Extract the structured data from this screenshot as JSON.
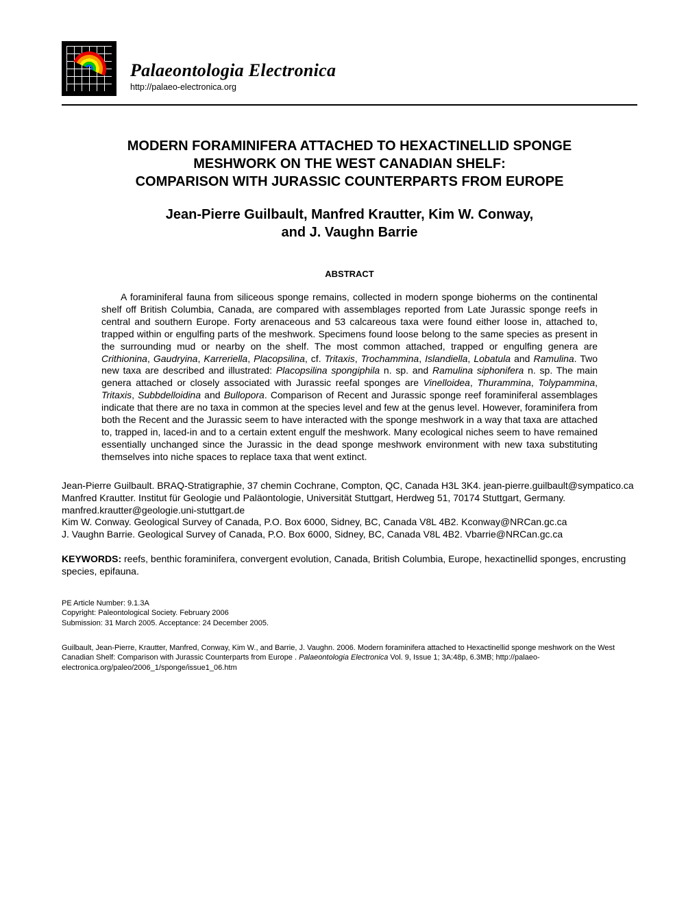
{
  "journal": {
    "title": "Palaeontologia Electronica",
    "url": "http://palaeo-electronica.org",
    "logo_colors": {
      "bg": "#000000",
      "grid": "#ffffff",
      "arcs": [
        "#e60000",
        "#ff9900",
        "#ffee00",
        "#00cc00",
        "#0066ff"
      ]
    }
  },
  "article": {
    "title_line1": "MODERN FORAMINIFERA ATTACHED TO HEXACTINELLID SPONGE",
    "title_line2": "MESHWORK ON THE WEST CANADIAN SHELF:",
    "title_line3": "COMPARISON WITH JURASSIC COUNTERPARTS FROM EUROPE",
    "authors_line1": "Jean-Pierre Guilbault, Manfred Krautter, Kim W. Conway,",
    "authors_line2": "and J. Vaughn Barrie"
  },
  "abstract": {
    "heading": "ABSTRACT",
    "p1_a": "A foraminiferal fauna from siliceous sponge remains, collected in modern sponge bioherms on the continental shelf off British Columbia, Canada, are compared with assemblages reported from Late Jurassic sponge reefs in central and southern Europe. Forty arenaceous and 53 calcareous taxa were found either loose in, attached to, trapped within or engulfing parts of the meshwork. Specimens found loose belong to the same species as present in the surrounding mud or nearby on the shelf. The most common attached, trapped or engulfing genera are ",
    "genera1": "Crithionina",
    "c1": ", ",
    "genera2": "Gaudryina",
    "c2": ", ",
    "genera3": "Karreriella",
    "c3": ", ",
    "genera4": "Placopsilina",
    "c4": ", cf. ",
    "genera5": "Tritaxis",
    "c5": ", ",
    "genera6": "Trochammina",
    "c6": ", ",
    "genera7": "Islandiella",
    "c7": ", ",
    "genera8": "Lobatula",
    "c8": " and ",
    "genera9": "Ramulina",
    "p1_b": ". Two new taxa are described and illustrated: ",
    "newtaxa1": "Placopsilina spongiphila",
    "p1_c": " n. sp. and ",
    "newtaxa2": "Ramulina siphonifera",
    "p1_d": " n. sp. The main genera attached or closely associated with Jurassic reefal sponges are ",
    "jgen1": "Vinelloidea",
    "jc1": ", ",
    "jgen2": "Thurammina",
    "jc2": ", ",
    "jgen3": "Tolypammina",
    "jc3": ", ",
    "jgen4": "Tritaxis",
    "jc4": ", ",
    "jgen5": "Subbdelloidina",
    "jc5": " and ",
    "jgen6": "Bullopora",
    "p1_e": ". Comparison of Recent and Jurassic sponge reef foraminiferal assemblages indicate that there are no taxa in common at the species level and few at the genus level. However, foraminifera from both the Recent and the Jurassic seem to have interacted with the sponge meshwork in a way that taxa are attached to, trapped in, laced-in and to a certain extent engulf the meshwork. Many ecological niches seem to have remained essentially unchanged since the Jurassic in the dead sponge meshwork environment with new taxa substituting themselves into niche spaces to replace taxa that went extinct."
  },
  "affiliations": {
    "a1": "Jean-Pierre Guilbault. BRAQ-Stratigraphie, 37 chemin Cochrane, Compton, QC, Canada H3L 3K4. jean-pierre.guilbault@sympatico.ca",
    "a2": "Manfred Krautter. Institut für Geologie und Paläontologie, Universität Stuttgart, Herdweg 51, 70174 Stuttgart, Germany. manfred.krautter@geologie.uni-stuttgart.de",
    "a3": "Kim W. Conway. Geological Survey of Canada, P.O. Box 6000, Sidney, BC, Canada V8L 4B2. Kconway@NRCan.gc.ca",
    "a4": "J. Vaughn Barrie. Geological Survey of Canada, P.O. Box 6000, Sidney, BC, Canada V8L 4B2. Vbarrie@NRCan.gc.ca"
  },
  "keywords": {
    "label": "KEYWORDS:",
    "text": " reefs, benthic foraminifera, convergent evolution, Canada, British Columbia, Europe, hexactinellid sponges, encrusting species, epifauna."
  },
  "meta": {
    "line1": "PE Article Number: 9.1.3A",
    "line2": "Copyright: Paleontological Society. February 2006",
    "line3": "Submission: 31 March 2005. Acceptance: 24 December 2005."
  },
  "citation": {
    "text_a": "Guilbault, Jean-Pierre, Krautter, Manfred, Conway, Kim W., and Barrie, J. Vaughn. 2006. Modern foraminifera attached to Hexactinellid sponge meshwork on the West Canadian Shelf: Comparison with Jurassic Counterparts from Europe . ",
    "journal_italic": "Palaeontologia Electronica",
    "text_b": " Vol. 9, Issue 1; 3A:48p, 6.3MB; http://palaeo-electronica.org/paleo/2006_1/sponge/issue1_06.htm"
  }
}
